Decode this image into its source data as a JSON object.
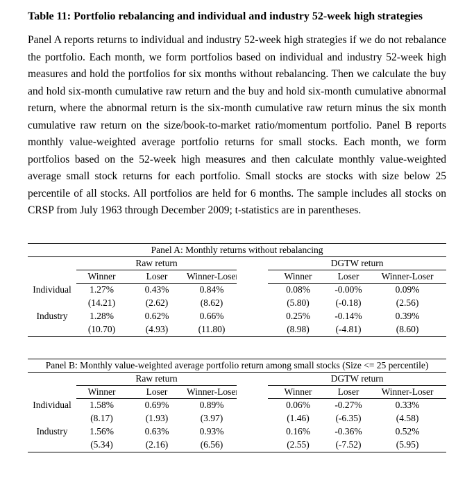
{
  "doc": {
    "title": "Table 11: Portfolio rebalancing and individual and industry 52-week high strategies",
    "description": "Panel A reports returns to individual and industry 52-week high strategies if we do not rebalance the portfolio. Each month, we form portfolios based on individual and industry 52-week high measures and hold the portfolios for six months without rebalancing. Then we calculate the buy and hold six-month cumulative raw return and the buy and hold six-month cumulative abnormal return, where the abnormal return is the six-month cumulative raw return minus the six month cumulative raw return on the size/book-to-market ratio/momentum portfolio. Panel B reports monthly value-weighted average portfolio returns for small stocks. Each month, we form portfolios based on the 52-week high measures and then calculate monthly value-weighted average small stock returns for each portfolio. Small stocks are stocks with size below 25 percentile of all stocks. All portfolios are held for 6 months. The sample includes all stocks on CRSP from July 1963 through December 2009; t-statistics are in parentheses."
  },
  "table": {
    "group_headers": [
      "Raw return",
      "DGTW return"
    ],
    "column_headers": [
      "Winner",
      "Loser",
      "Winner-Loser"
    ],
    "panel_a": {
      "title": "Panel A: Monthly returns without rebalancing",
      "rows": [
        {
          "label": "Individual",
          "raw": [
            "1.27%",
            "0.43%",
            "0.84%"
          ],
          "dgtw": [
            "0.08%",
            "-0.00%",
            "0.09%"
          ]
        },
        {
          "label": "",
          "raw": [
            "(14.21)",
            "(2.62)",
            "(8.62)"
          ],
          "dgtw": [
            "(5.80)",
            "(-0.18)",
            "(2.56)"
          ]
        },
        {
          "label": "Industry",
          "raw": [
            "1.28%",
            "0.62%",
            "0.66%"
          ],
          "dgtw": [
            "0.25%",
            "-0.14%",
            "0.39%"
          ]
        },
        {
          "label": "",
          "raw": [
            "(10.70)",
            "(4.93)",
            "(11.80)"
          ],
          "dgtw": [
            "(8.98)",
            "(-4.81)",
            "(8.60)"
          ]
        }
      ]
    },
    "panel_b": {
      "title": "Panel B: Monthly value-weighted average portfolio return among small stocks (Size <= 25 percentile)",
      "rows": [
        {
          "label": "Individual",
          "raw": [
            "1.58%",
            "0.69%",
            "0.89%"
          ],
          "dgtw": [
            "0.06%",
            "-0.27%",
            "0.33%"
          ]
        },
        {
          "label": "",
          "raw": [
            "(8.17)",
            "(1.93)",
            "(3.97)"
          ],
          "dgtw": [
            "(1.46)",
            "(-6.35)",
            "(4.58)"
          ]
        },
        {
          "label": "Industry",
          "raw": [
            "1.56%",
            "0.63%",
            "0.93%"
          ],
          "dgtw": [
            "0.16%",
            "-0.36%",
            "0.52%"
          ]
        },
        {
          "label": "",
          "raw": [
            "(5.34)",
            "(2.16)",
            "(6.56)"
          ],
          "dgtw": [
            "(2.55)",
            "(-7.52)",
            "(5.95)"
          ]
        }
      ]
    }
  }
}
